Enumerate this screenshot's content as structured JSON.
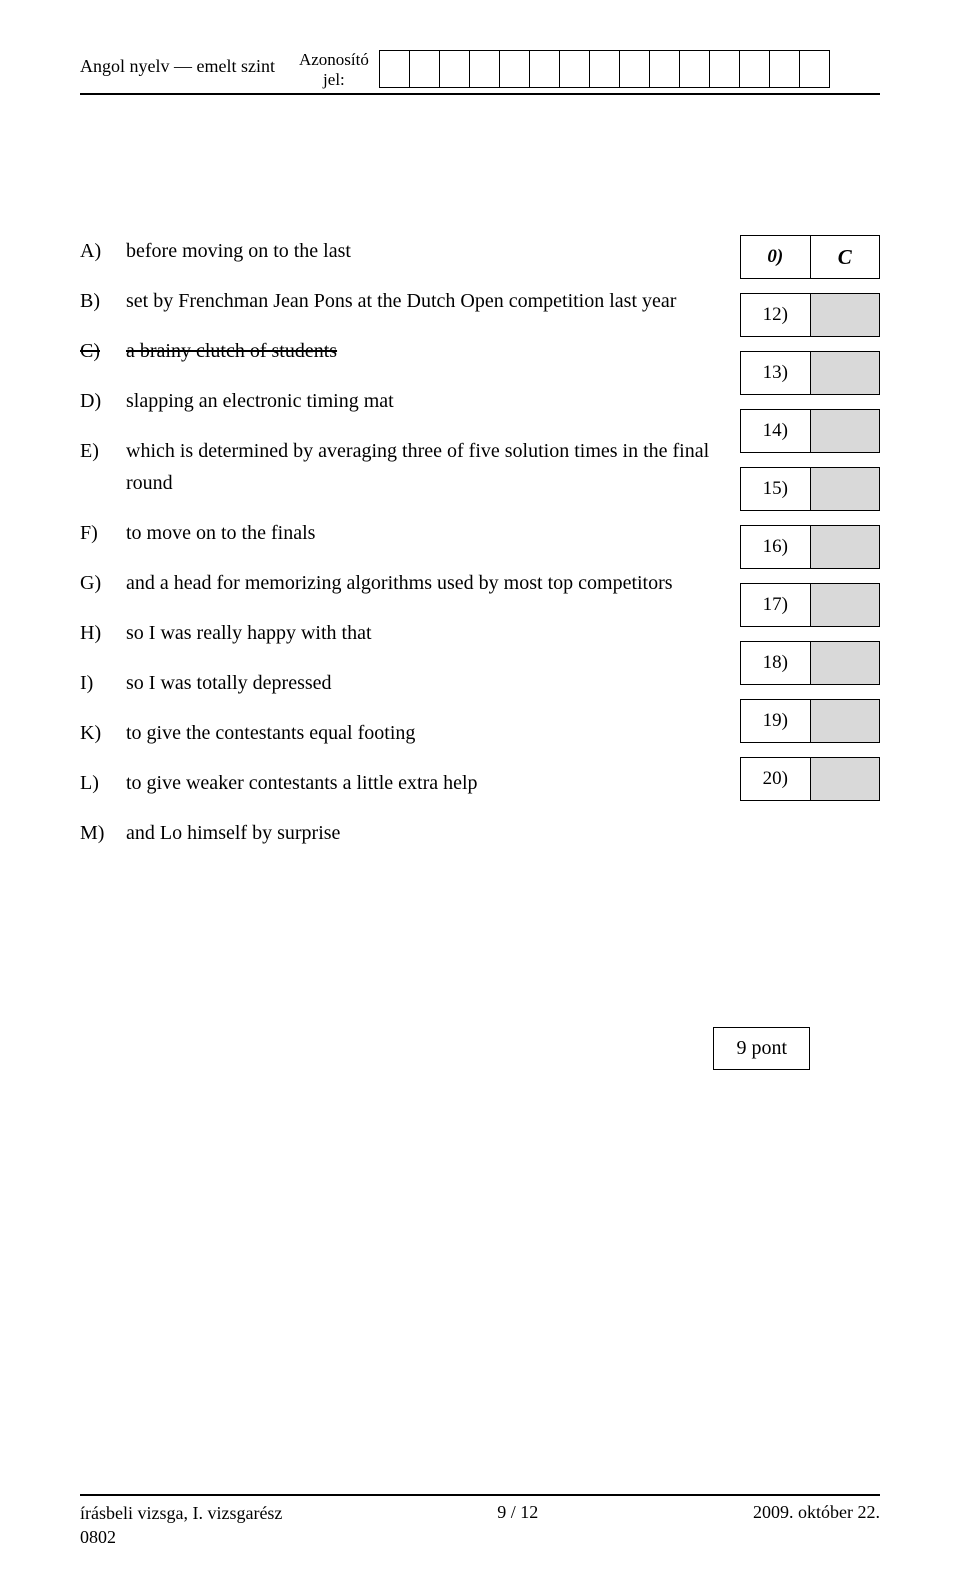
{
  "header": {
    "left": "Angol nyelv — emelt szint",
    "mid_line1": "Azonosító",
    "mid_line2": "jel:",
    "id_cell_count": 15
  },
  "options": [
    {
      "letter": "A)",
      "text": "before moving on to the last",
      "strike": false
    },
    {
      "letter": "B)",
      "text": "set by Frenchman Jean Pons at the Dutch Open competition last year",
      "strike": false
    },
    {
      "letter": "C)",
      "text": "a brainy clutch of students",
      "strike": true
    },
    {
      "letter": "D)",
      "text": "slapping an electronic timing mat",
      "strike": false
    },
    {
      "letter": "E)",
      "text": "which is determined by averaging three of five solution times in the final round",
      "strike": false
    },
    {
      "letter": "F)",
      "text": "to move on to the finals",
      "strike": false
    },
    {
      "letter": "G)",
      "text": "and a head for memorizing algorithms used by most top competitors",
      "strike": false
    },
    {
      "letter": "H)",
      "text": "so I was really happy with that",
      "strike": false
    },
    {
      "letter": "I)",
      "text": "so I was totally depressed",
      "strike": false
    },
    {
      "letter": "K)",
      "text": "to give the contestants equal footing",
      "strike": false
    },
    {
      "letter": "L)",
      "text": "to give weaker contestants a little extra help",
      "strike": false
    },
    {
      "letter": "M)",
      "text": "and Lo himself by surprise",
      "strike": false
    }
  ],
  "answers": {
    "example": {
      "num": "0)",
      "value": "C"
    },
    "items": [
      {
        "num": "12)"
      },
      {
        "num": "13)"
      },
      {
        "num": "14)"
      },
      {
        "num": "15)"
      },
      {
        "num": "16)"
      },
      {
        "num": "17)"
      },
      {
        "num": "18)"
      },
      {
        "num": "19)"
      },
      {
        "num": "20)"
      }
    ]
  },
  "score": {
    "label": "9 pont"
  },
  "footer": {
    "left_line1": "írásbeli vizsga, I. vizsgarész",
    "left_line2": "0802",
    "mid": "9 / 12",
    "right": "2009. október 22."
  }
}
